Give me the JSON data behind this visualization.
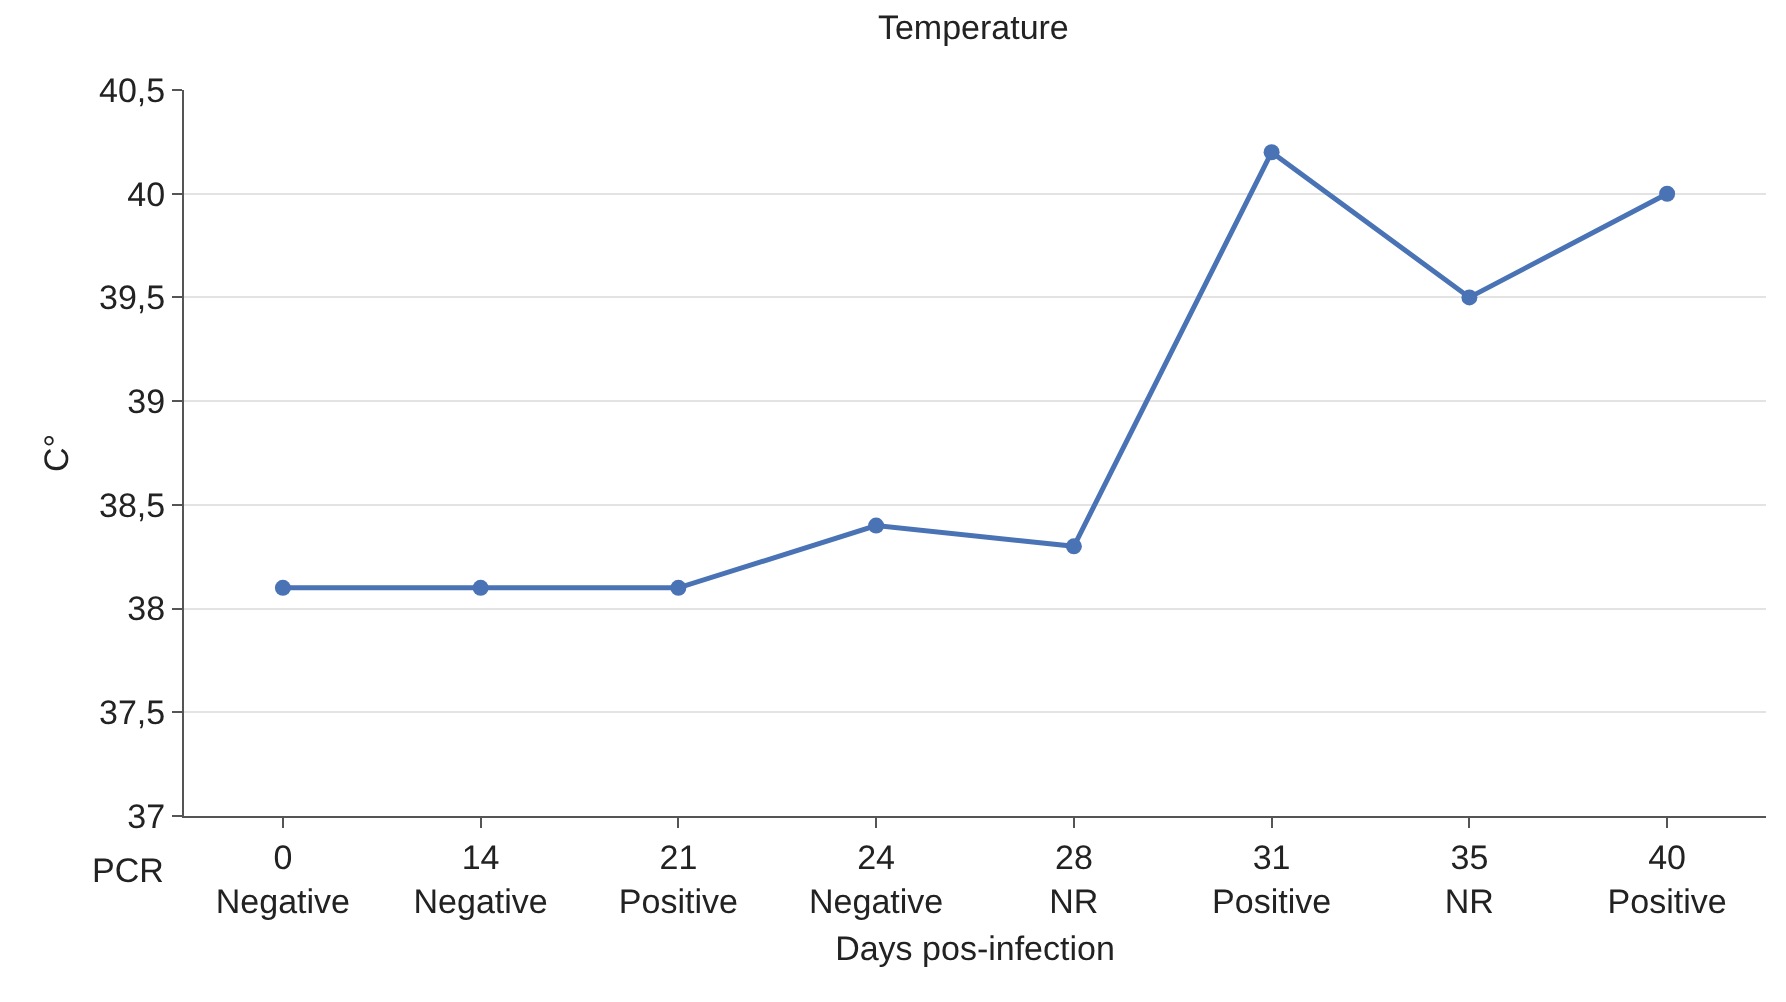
{
  "chart_data": {
    "type": "line",
    "title": "Temperature",
    "xlabel": "Days pos-infection",
    "ylabel": "C°",
    "categories": [
      "0\nNegative",
      "14\nNegative",
      "21\nPositive",
      "24\nNegative",
      "28\nNR",
      "31\nPositive",
      "35\nNR",
      "40\nPositive"
    ],
    "series": [
      {
        "color": "#4a73b5",
        "values": [
          38.1,
          38.1,
          38.1,
          38.4,
          38.3,
          40.2,
          39.5,
          40.0
        ]
      }
    ],
    "ylim": [
      37,
      40.5
    ],
    "yticks": [
      37,
      {
        "value": 37.5,
        "label": "37,5"
      },
      38,
      {
        "value": 38.5,
        "label": "38,5"
      },
      39,
      {
        "value": 39.5,
        "label": "39,5"
      },
      40,
      {
        "value": 40.5,
        "label": "40,5"
      }
    ],
    "annotations": [
      "PCR"
    ],
    "grid": "y",
    "marker": "circle",
    "line_style": "solid"
  }
}
